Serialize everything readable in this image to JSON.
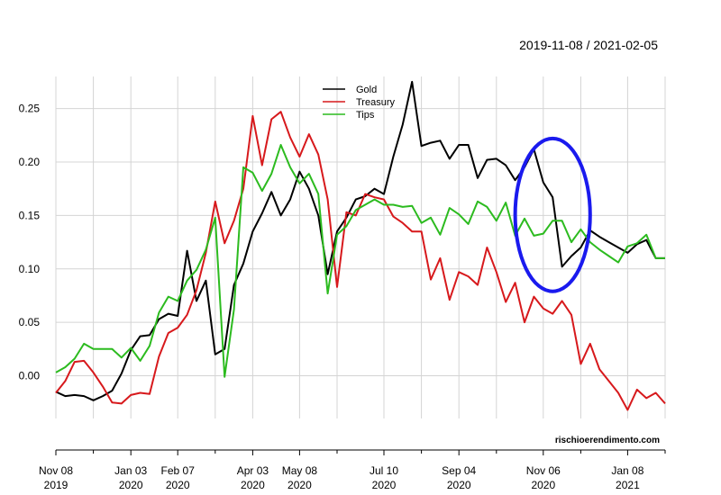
{
  "chart_data": {
    "type": "line",
    "date_range_label": "2019-11-08 / 2021-02-05",
    "watermark": "rischioerendimento.com",
    "ylim": [
      -0.04,
      0.28
    ],
    "y_ticks": [
      {
        "value": 0.25,
        "label": "0.25"
      },
      {
        "value": 0.2,
        "label": "0.20"
      },
      {
        "value": 0.15,
        "label": "0.15"
      },
      {
        "value": 0.1,
        "label": "0.10"
      },
      {
        "value": 0.05,
        "label": "0.05"
      },
      {
        "value": 0.0,
        "label": "0.00"
      }
    ],
    "x_tick_labels": [
      {
        "x": "2019-11-08",
        "line1": "Nov 08",
        "line2": "2019"
      },
      {
        "x": "2020-01-03",
        "line1": "Jan 03",
        "line2": "2020"
      },
      {
        "x": "2020-02-07",
        "line1": "Feb 07",
        "line2": "2020"
      },
      {
        "x": "2020-04-03",
        "line1": "Apr 03",
        "line2": "2020"
      },
      {
        "x": "2020-05-08",
        "line1": "May 08",
        "line2": "2020"
      },
      {
        "x": "2020-07-10",
        "line1": "Jul 10",
        "line2": "2020"
      },
      {
        "x": "2020-09-04",
        "line1": "Sep 04",
        "line2": "2020"
      },
      {
        "x": "2020-11-06",
        "line1": "Nov 06",
        "line2": "2020"
      },
      {
        "x": "2021-01-08",
        "line1": "Jan 08",
        "line2": "2021"
      }
    ],
    "minor_ticks": [
      "2019-12-06",
      "2020-03-06",
      "2020-06-05",
      "2020-08-07",
      "2020-10-02",
      "2020-12-04",
      "2021-02-05"
    ],
    "legend": {
      "position": "top-center"
    },
    "x": [
      "2019-11-08",
      "2019-11-15",
      "2019-11-22",
      "2019-11-29",
      "2019-12-06",
      "2019-12-13",
      "2019-12-20",
      "2019-12-27",
      "2020-01-03",
      "2020-01-10",
      "2020-01-17",
      "2020-01-24",
      "2020-01-31",
      "2020-02-07",
      "2020-02-14",
      "2020-02-21",
      "2020-02-28",
      "2020-03-06",
      "2020-03-13",
      "2020-03-20",
      "2020-03-27",
      "2020-04-03",
      "2020-04-10",
      "2020-04-17",
      "2020-04-24",
      "2020-05-01",
      "2020-05-08",
      "2020-05-15",
      "2020-05-22",
      "2020-05-29",
      "2020-06-05",
      "2020-06-12",
      "2020-06-19",
      "2020-06-26",
      "2020-07-03",
      "2020-07-10",
      "2020-07-17",
      "2020-07-24",
      "2020-07-31",
      "2020-08-07",
      "2020-08-14",
      "2020-08-21",
      "2020-08-28",
      "2020-09-04",
      "2020-09-11",
      "2020-09-18",
      "2020-09-25",
      "2020-10-02",
      "2020-10-09",
      "2020-10-16",
      "2020-10-23",
      "2020-10-30",
      "2020-11-06",
      "2020-11-13",
      "2020-11-20",
      "2020-11-27",
      "2020-12-04",
      "2020-12-11",
      "2020-12-18",
      "2020-12-25",
      "2021-01-01",
      "2021-01-08",
      "2021-01-15",
      "2021-01-22",
      "2021-01-29",
      "2021-02-05"
    ],
    "series": [
      {
        "name": "Gold",
        "color": "#000000",
        "values": [
          -0.015,
          -0.019,
          -0.018,
          -0.019,
          -0.023,
          -0.019,
          -0.014,
          0.002,
          0.024,
          0.037,
          0.038,
          0.053,
          0.058,
          0.056,
          0.117,
          0.07,
          0.089,
          0.02,
          0.025,
          0.085,
          0.105,
          0.135,
          0.152,
          0.172,
          0.15,
          0.165,
          0.191,
          0.175,
          0.15,
          0.095,
          0.135,
          0.148,
          0.165,
          0.168,
          0.175,
          0.17,
          0.205,
          0.235,
          0.275,
          0.215,
          0.218,
          0.22,
          0.203,
          0.216,
          0.216,
          0.185,
          0.202,
          0.203,
          0.197,
          0.183,
          0.195,
          0.212,
          0.181,
          0.167,
          0.102,
          0.112,
          0.12,
          0.136,
          0.13,
          0.125,
          0.12,
          0.115,
          0.123,
          0.127,
          0.11,
          0.11
        ]
      },
      {
        "name": "Treasury",
        "color": "#d7191c",
        "values": [
          -0.016,
          -0.005,
          0.013,
          0.014,
          0.003,
          -0.01,
          -0.025,
          -0.026,
          -0.018,
          -0.016,
          -0.017,
          0.018,
          0.04,
          0.045,
          0.057,
          0.08,
          0.115,
          0.163,
          0.124,
          0.145,
          0.175,
          0.243,
          0.197,
          0.24,
          0.247,
          0.223,
          0.205,
          0.226,
          0.207,
          0.165,
          0.083,
          0.153,
          0.15,
          0.17,
          0.167,
          0.165,
          0.149,
          0.143,
          0.135,
          0.135,
          0.09,
          0.11,
          0.071,
          0.097,
          0.093,
          0.085,
          0.12,
          0.097,
          0.069,
          0.087,
          0.05,
          0.074,
          0.063,
          0.058,
          0.07,
          0.057,
          0.011,
          0.03,
          0.006,
          -0.005,
          -0.016,
          -0.032,
          -0.013,
          -0.021,
          -0.016,
          -0.026
        ]
      },
      {
        "name": "Tips",
        "color": "#2cbb1f",
        "values": [
          0.003,
          0.008,
          0.016,
          0.03,
          0.025,
          0.025,
          0.025,
          0.017,
          0.026,
          0.014,
          0.028,
          0.059,
          0.074,
          0.07,
          0.089,
          0.099,
          0.118,
          0.148,
          -0.001,
          0.062,
          0.195,
          0.19,
          0.173,
          0.189,
          0.216,
          0.195,
          0.18,
          0.189,
          0.17,
          0.077,
          0.132,
          0.14,
          0.155,
          0.16,
          0.165,
          0.16,
          0.16,
          0.158,
          0.159,
          0.143,
          0.148,
          0.132,
          0.157,
          0.151,
          0.142,
          0.163,
          0.158,
          0.145,
          0.162,
          0.131,
          0.147,
          0.131,
          0.133,
          0.145,
          0.145,
          0.125,
          0.137,
          0.125,
          0.118,
          0.112,
          0.106,
          0.121,
          0.124,
          0.132,
          0.11,
          0.11
        ]
      }
    ],
    "annotation": {
      "shape": "ellipse",
      "color": "#1a1aee",
      "x_from": "2020-10-16",
      "x_to": "2020-12-11",
      "y_from": 0.079,
      "y_to": 0.222
    }
  }
}
